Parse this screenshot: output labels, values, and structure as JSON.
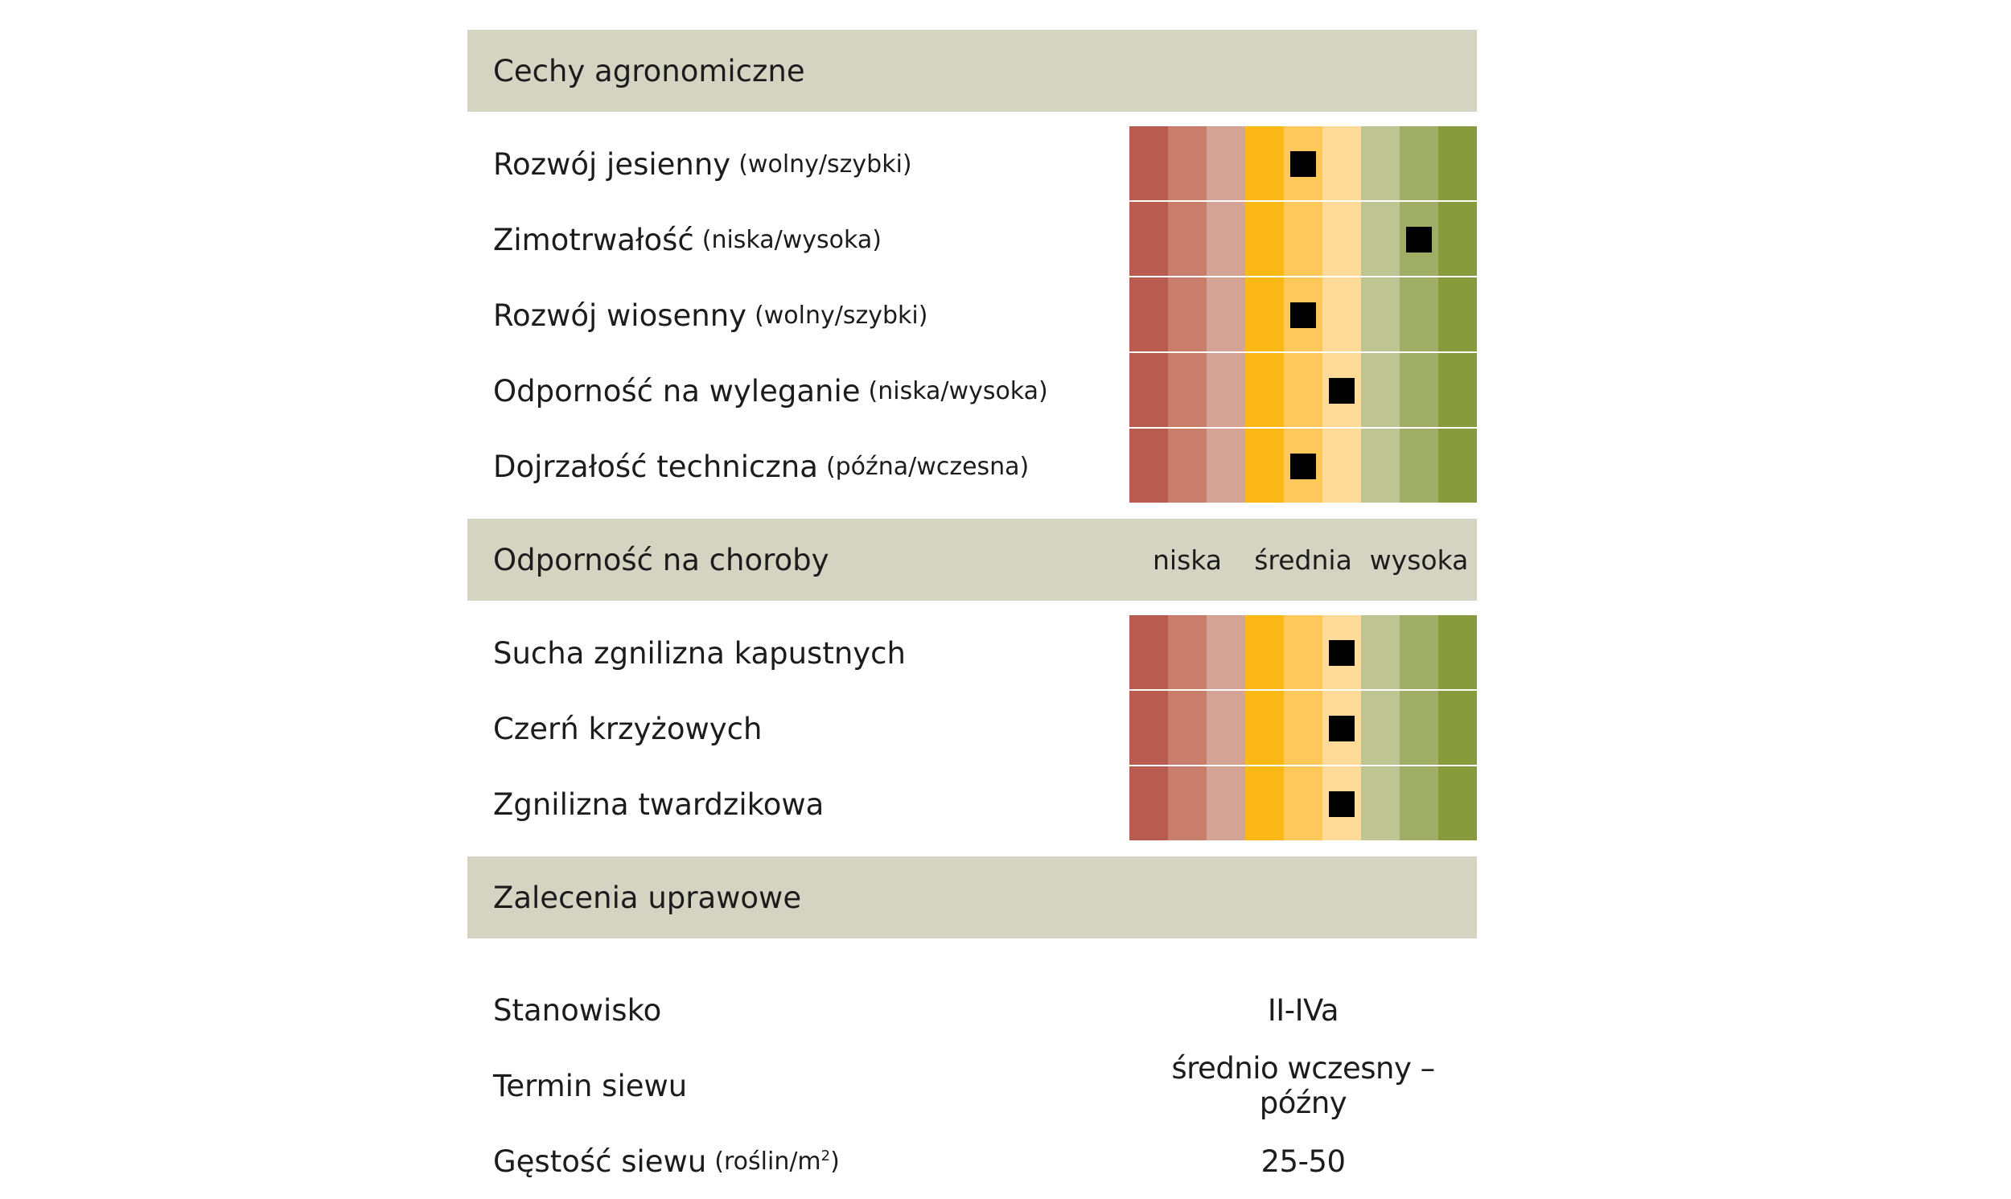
{
  "colors": [
    "#b85c4f",
    "#c97e6c",
    "#d5a395",
    "#fbb816",
    "#fec95a",
    "#ffdb97",
    "#bec592",
    "#a0ad66",
    "#879b3c"
  ],
  "agronomic": {
    "title": "Cechy agronomiczne",
    "rows": [
      {
        "label": "Rozwój jesienny",
        "hint": "(wolny/szybki)",
        "level": 5
      },
      {
        "label": "Zimotrwałość",
        "hint": "(niska/wysoka)",
        "level": 8
      },
      {
        "label": "Rozwój wiosenny",
        "hint": "(wolny/szybki)",
        "level": 5
      },
      {
        "label": "Odporność na wyleganie",
        "hint": "(niska/wysoka)",
        "level": 6
      },
      {
        "label": "Dojrzałość techniczna",
        "hint": "(późna/wczesna)",
        "level": 5
      }
    ]
  },
  "disease": {
    "title": "Odporność na choroby",
    "scale_labels": [
      "niska",
      "średnia",
      "wysoka"
    ],
    "rows": [
      {
        "label": "Sucha zgnilizna kapustnych",
        "level": 6
      },
      {
        "label": "Czerń krzyżowych",
        "level": 6
      },
      {
        "label": "Zgnilizna twardzikowa",
        "level": 6
      }
    ]
  },
  "recommendations": {
    "title": "Zalecenia uprawowe",
    "rows": [
      {
        "label": "Stanowisko",
        "hint": "",
        "value": "II-IVa"
      },
      {
        "label": "Termin siewu",
        "hint": "",
        "value": "średnio wczesny – późny"
      },
      {
        "label": "Gęstość siewu",
        "hint": "(roślin/m",
        "sup": "2",
        "hint_end": ")",
        "value": "25-50"
      }
    ]
  }
}
